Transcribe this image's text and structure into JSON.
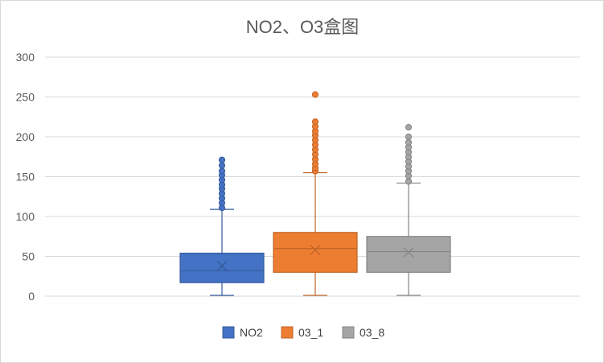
{
  "chart_data": {
    "type": "box",
    "title": "NO2、O3盒图",
    "ylim": [
      0,
      300
    ],
    "yticks": [
      0,
      50,
      100,
      150,
      200,
      250,
      300
    ],
    "grid": true,
    "legend_position": "bottom",
    "series": [
      {
        "name": "NO2",
        "color": "#4472c4",
        "min": 1,
        "q1": 17,
        "median": 32,
        "mean": 38,
        "q3": 54,
        "max": 109,
        "outliers": [
          111,
          117,
          123,
          129,
          135,
          140,
          146,
          152,
          157,
          164,
          171
        ]
      },
      {
        "name": "03_1",
        "color": "#ed7d31",
        "min": 1,
        "q1": 30,
        "median": 60,
        "mean": 58,
        "q3": 80,
        "max": 155,
        "outliers": [
          157,
          161,
          166,
          172,
          178,
          184,
          190,
          196,
          202,
          207,
          213,
          219,
          253
        ]
      },
      {
        "name": "03_8",
        "color": "#a5a5a5",
        "min": 1,
        "q1": 30,
        "median": 56,
        "mean": 55,
        "q3": 75,
        "max": 142,
        "outliers": [
          144,
          151,
          157,
          163,
          169,
          175,
          181,
          187,
          193,
          200,
          212
        ]
      }
    ]
  }
}
